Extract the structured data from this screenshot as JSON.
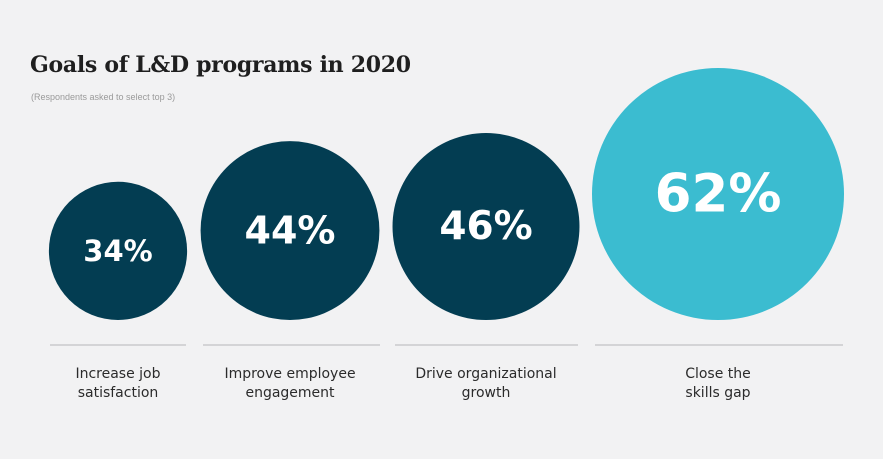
{
  "chart_data": {
    "type": "bubble",
    "title": "Goals of L&D programs in 2020",
    "subtitle": "(Respondents asked to select top 3)",
    "unit": "%",
    "categories": [
      "Increase job\nsatisfaction",
      "Improve employee\nengagement",
      "Drive organizational\ngrowth",
      "Close the\nskills gap"
    ],
    "values": [
      34,
      44,
      46,
      62
    ],
    "value_labels": [
      "34%",
      "44%",
      "46%",
      "62%"
    ],
    "highlight_index": 3
  },
  "colors": {
    "bubble": "#033d52",
    "highlight": "#3bbcd0",
    "baseline": "#c9c9cc",
    "label_text": "#ffffff"
  }
}
